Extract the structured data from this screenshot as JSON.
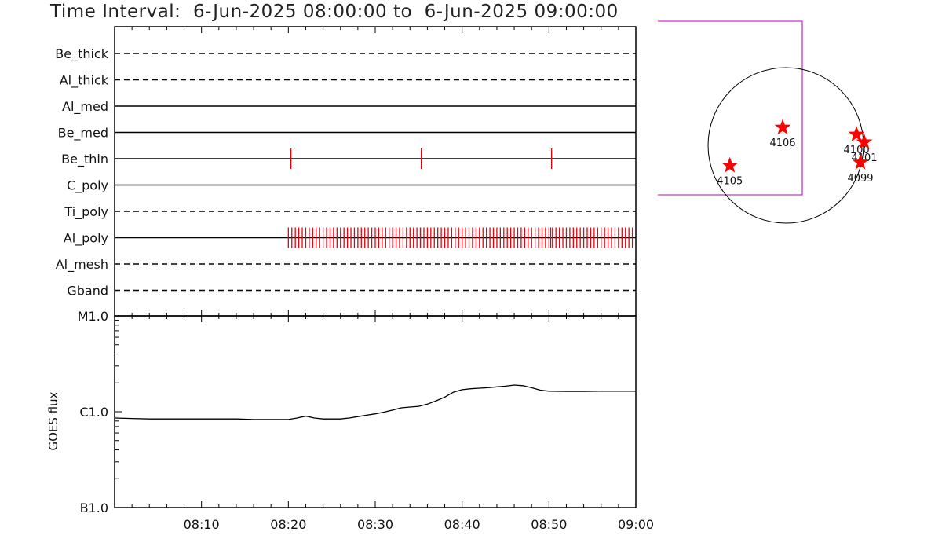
{
  "title": "Time Interval:  6-Jun-2025 08:00:00 to  6-Jun-2025 09:00:00",
  "colors": {
    "axis": "#000000",
    "event": "#e8000b",
    "fov": "#cc33cc",
    "star": "#ff0000"
  },
  "filter_panel": {
    "filters": [
      {
        "label": "Be_thick",
        "style": "dashed",
        "events": []
      },
      {
        "label": "Al_thick",
        "style": "dashed",
        "events": []
      },
      {
        "label": "Al_med",
        "style": "solid",
        "events": []
      },
      {
        "label": "Be_med",
        "style": "solid",
        "events": []
      },
      {
        "label": "Be_thin",
        "style": "solid",
        "events": [
          20.3,
          35.3,
          50.3
        ]
      },
      {
        "label": "C_poly",
        "style": "solid",
        "events": []
      },
      {
        "label": "Ti_poly",
        "style": "dashed",
        "events": []
      },
      {
        "label": "Al_poly",
        "style": "solid",
        "events_range": [
          20.0,
          59.8
        ],
        "events_step": 0.4
      },
      {
        "label": "Al_mesh",
        "style": "dashed",
        "events": []
      },
      {
        "label": "Gband",
        "style": "dashed",
        "events": []
      }
    ]
  },
  "chart_data": {
    "type": "line",
    "xlabel": "",
    "ylabel": "GOES flux",
    "y_scale": "log",
    "x_domain_minutes": [
      0,
      60
    ],
    "x_ticks": [
      {
        "m": 10,
        "label": "08:10"
      },
      {
        "m": 20,
        "label": "08:20"
      },
      {
        "m": 30,
        "label": "08:30"
      },
      {
        "m": 40,
        "label": "08:40"
      },
      {
        "m": 50,
        "label": "08:50"
      },
      {
        "m": 60,
        "label": "09:00"
      }
    ],
    "y_ticks": [
      {
        "v": 1e-05,
        "label": "M1.0"
      },
      {
        "v": 1e-06,
        "label": "C1.0"
      },
      {
        "v": 1e-07,
        "label": "B1.0"
      }
    ],
    "ylim": [
      1e-07,
      1e-05
    ],
    "series": [
      {
        "x": [
          0,
          2,
          4,
          6,
          8,
          10,
          12,
          14,
          16,
          18,
          20,
          21,
          22,
          23,
          24,
          25,
          26,
          27,
          28,
          29,
          30,
          31,
          32,
          33,
          34,
          35,
          36,
          37,
          38,
          39,
          40,
          41,
          42,
          43,
          44,
          45,
          46,
          47,
          48,
          49,
          50,
          52,
          54,
          56,
          58,
          60
        ],
        "y": [
          8.6e-07,
          8.5e-07,
          8.4e-07,
          8.4e-07,
          8.4e-07,
          8.4e-07,
          8.4e-07,
          8.4e-07,
          8.3e-07,
          8.3e-07,
          8.3e-07,
          8.6e-07,
          9e-07,
          8.6e-07,
          8.4e-07,
          8.4e-07,
          8.4e-07,
          8.6e-07,
          8.9e-07,
          9.2e-07,
          9.5e-07,
          9.9e-07,
          1.04e-06,
          1.1e-06,
          1.12e-06,
          1.14e-06,
          1.2e-06,
          1.3e-06,
          1.42e-06,
          1.6e-06,
          1.7e-06,
          1.74e-06,
          1.76e-06,
          1.78e-06,
          1.82e-06,
          1.85e-06,
          1.9e-06,
          1.87e-06,
          1.78e-06,
          1.68e-06,
          1.64e-06,
          1.63e-06,
          1.63e-06,
          1.64e-06,
          1.64e-06,
          1.64e-06
        ]
      }
    ]
  },
  "solar_map": {
    "active_regions": [
      {
        "id": "4106",
        "sx": -0.04,
        "sy": 0.23
      },
      {
        "id": "4100",
        "sx": 0.91,
        "sy": 0.14
      },
      {
        "id": "4101",
        "sx": 1.01,
        "sy": 0.04
      },
      {
        "id": "4099",
        "sx": 0.96,
        "sy": -0.22
      },
      {
        "id": "4105",
        "sx": -0.72,
        "sy": -0.26
      }
    ]
  }
}
